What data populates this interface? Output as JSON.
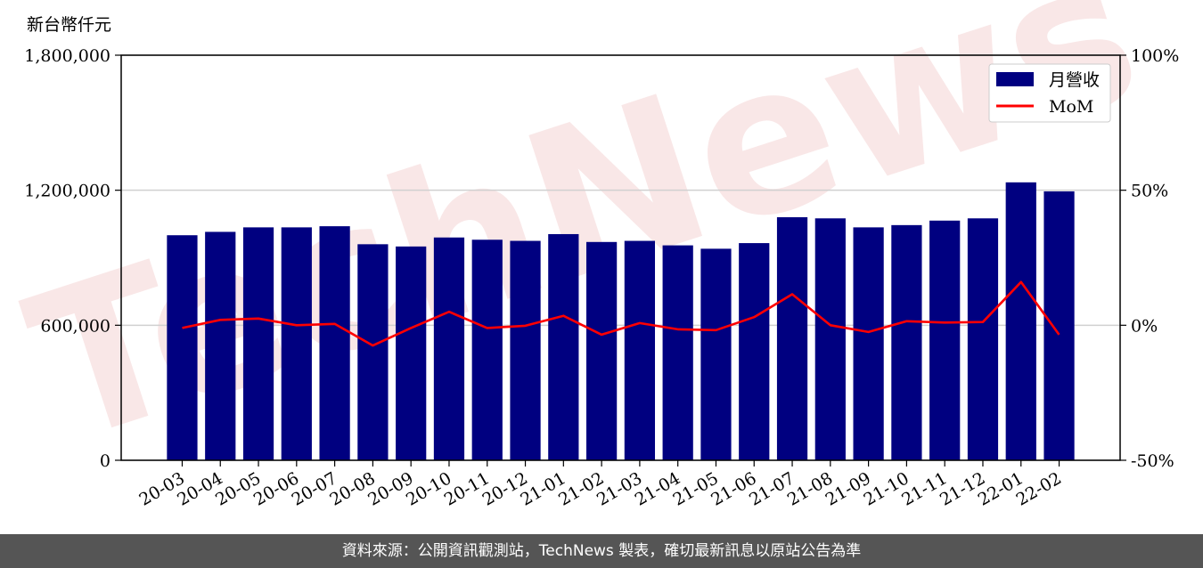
{
  "chart_data": {
    "type": "bar",
    "y_unit_label": "新台幣仟元",
    "categories": [
      "20-03",
      "20-04",
      "20-05",
      "20-06",
      "20-07",
      "20-08",
      "20-09",
      "20-10",
      "20-11",
      "20-12",
      "21-01",
      "21-02",
      "21-03",
      "21-04",
      "21-05",
      "21-06",
      "21-07",
      "21-08",
      "21-09",
      "21-10",
      "21-11",
      "21-12",
      "22-01",
      "22-02"
    ],
    "series": [
      {
        "name": "月營收",
        "type": "bar",
        "axis": "left",
        "color": "#000080",
        "values": [
          1000000,
          1015000,
          1035000,
          1035000,
          1040000,
          960000,
          950000,
          990000,
          980000,
          975000,
          1005000,
          970000,
          975000,
          955000,
          940000,
          965000,
          1080000,
          1075000,
          1035000,
          1045000,
          1065000,
          1075000,
          1235000,
          1195000
        ]
      },
      {
        "name": "MoM",
        "type": "line",
        "axis": "right",
        "color": "#ff0000",
        "values": [
          -1,
          2,
          2.5,
          0,
          0.5,
          -7.5,
          -1,
          5,
          -1,
          -0.2,
          3.5,
          -3.5,
          0.8,
          -1.5,
          -1.8,
          3,
          11.5,
          0,
          -2.5,
          1.5,
          1,
          1.2,
          16,
          -3.5
        ]
      }
    ],
    "ylim_left": [
      0,
      1800000
    ],
    "yticks_left": [
      "0",
      "600,000",
      "1,200,000",
      "1,800,000"
    ],
    "ylim_right": [
      -50,
      100
    ],
    "yticks_right": [
      "-50%",
      "0%",
      "50%",
      "100%"
    ],
    "grid": "horizontal at left ticks",
    "legend_position": "top-right",
    "watermark": "TechNews"
  },
  "footer": {
    "text": "資料來源：公開資訊觀測站，TechNews 製表，確切最新訊息以原站公告為準"
  }
}
